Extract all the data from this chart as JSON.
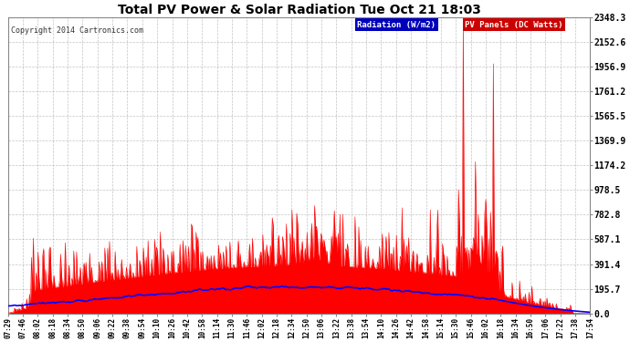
{
  "title": "Total PV Power & Solar Radiation Tue Oct 21 18:03",
  "copyright": "Copyright 2014 Cartronics.com",
  "legend_items": [
    {
      "label": "Radiation (W/m2)",
      "bg": "#0000bb",
      "fg": "#ffffff"
    },
    {
      "label": "PV Panels (DC Watts)",
      "bg": "#cc0000",
      "fg": "#ffffff"
    }
  ],
  "ymin": 0.0,
  "ymax": 2348.3,
  "yticks": [
    0.0,
    195.7,
    391.4,
    587.1,
    782.8,
    978.5,
    1174.2,
    1369.9,
    1565.5,
    1761.2,
    1956.9,
    2152.6,
    2348.3
  ],
  "xtick_labels": [
    "07:29",
    "07:46",
    "08:02",
    "08:18",
    "08:34",
    "08:50",
    "09:06",
    "09:22",
    "09:38",
    "09:54",
    "10:10",
    "10:26",
    "10:42",
    "10:58",
    "11:14",
    "11:30",
    "11:46",
    "12:02",
    "12:18",
    "12:34",
    "12:50",
    "13:06",
    "13:22",
    "13:38",
    "13:54",
    "14:10",
    "14:26",
    "14:42",
    "14:58",
    "15:14",
    "15:30",
    "15:46",
    "16:02",
    "16:18",
    "16:34",
    "16:50",
    "17:06",
    "17:22",
    "17:38",
    "17:54"
  ],
  "bg_color": "#ffffff",
  "plot_bg_color": "#ffffff",
  "grid_color": "#aaaaaa",
  "pv_fill_color": "#ff0000",
  "radiation_color": "#0000ff",
  "radiation_linewidth": 1.2,
  "figwidth": 6.9,
  "figheight": 3.75,
  "dpi": 100
}
